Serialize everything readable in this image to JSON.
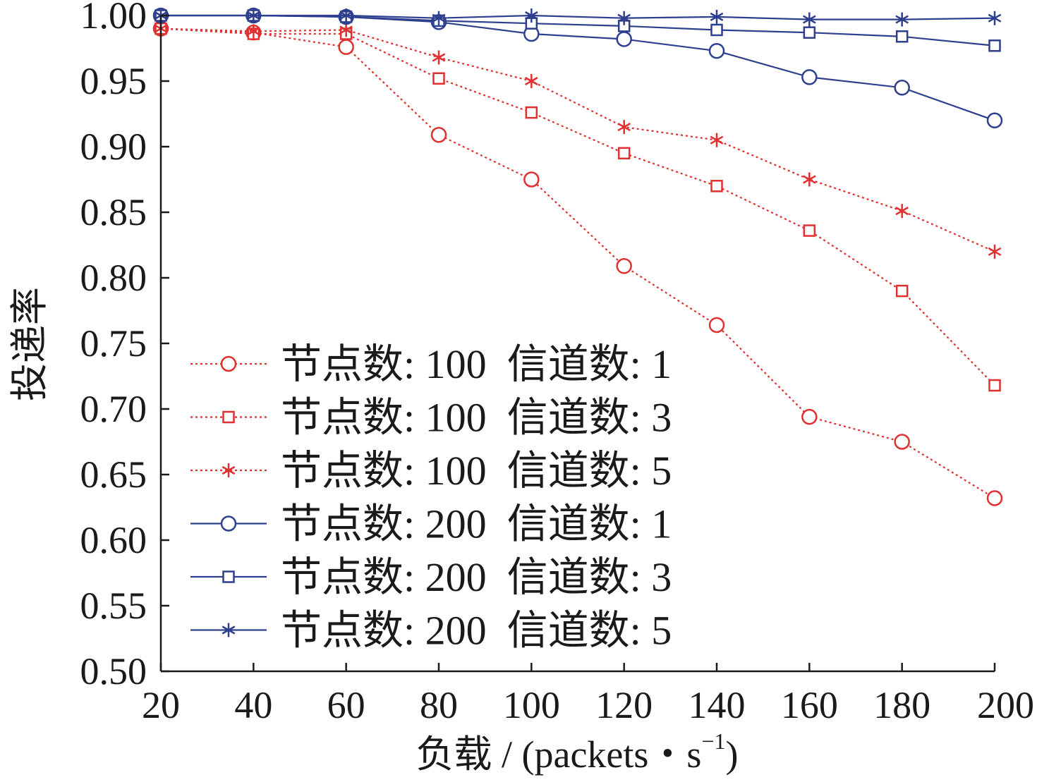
{
  "chart_data": {
    "type": "line",
    "xlabel": "负载 / (packets・s",
    "xlabel_sup": "−1",
    "xlabel_close": ")",
    "ylabel": "投递率",
    "x": [
      20,
      40,
      60,
      80,
      100,
      120,
      140,
      160,
      180,
      200
    ],
    "xlim": [
      20,
      200
    ],
    "ylim": [
      0.5,
      1.0
    ],
    "xticks": [
      "20",
      "40",
      "60",
      "80",
      "100",
      "120",
      "140",
      "160",
      "180",
      "200"
    ],
    "yticks": [
      "0.50",
      "0.55",
      "0.60",
      "0.65",
      "0.70",
      "0.75",
      "0.80",
      "0.85",
      "0.90",
      "0.95",
      "1.00"
    ],
    "grid": false,
    "legend_position": "lower-left",
    "series": [
      {
        "name": "节点数: 100  信道数: 1",
        "color": "#e03030",
        "line_style": "dotted",
        "marker": "circle",
        "values": [
          0.99,
          0.987,
          0.976,
          0.909,
          0.875,
          0.809,
          0.764,
          0.694,
          0.675,
          0.632
        ]
      },
      {
        "name": "节点数: 100  信道数: 3",
        "color": "#e03030",
        "line_style": "dotted",
        "marker": "square",
        "values": [
          0.99,
          0.986,
          0.986,
          0.952,
          0.926,
          0.895,
          0.87,
          0.836,
          0.79,
          0.718
        ]
      },
      {
        "name": "节点数: 100  信道数: 5",
        "color": "#e03030",
        "line_style": "dotted",
        "marker": "star",
        "values": [
          0.99,
          0.988,
          0.989,
          0.968,
          0.95,
          0.915,
          0.905,
          0.875,
          0.851,
          0.82
        ]
      },
      {
        "name": "节点数: 200  信道数: 1",
        "color": "#2e3f8f",
        "line_style": "solid",
        "marker": "circle",
        "values": [
          1.0,
          1.0,
          0.999,
          0.995,
          0.986,
          0.982,
          0.973,
          0.953,
          0.945,
          0.92
        ]
      },
      {
        "name": "节点数: 200  信道数: 3",
        "color": "#2e3f8f",
        "line_style": "solid",
        "marker": "square",
        "values": [
          1.0,
          1.0,
          0.999,
          0.996,
          0.994,
          0.992,
          0.989,
          0.987,
          0.984,
          0.977
        ]
      },
      {
        "name": "节点数: 200  信道数: 5",
        "color": "#2e3f8f",
        "line_style": "solid",
        "marker": "star",
        "values": [
          1.0,
          1.0,
          1.0,
          0.998,
          1.0,
          0.998,
          0.999,
          0.997,
          0.997,
          0.998
        ]
      }
    ]
  }
}
